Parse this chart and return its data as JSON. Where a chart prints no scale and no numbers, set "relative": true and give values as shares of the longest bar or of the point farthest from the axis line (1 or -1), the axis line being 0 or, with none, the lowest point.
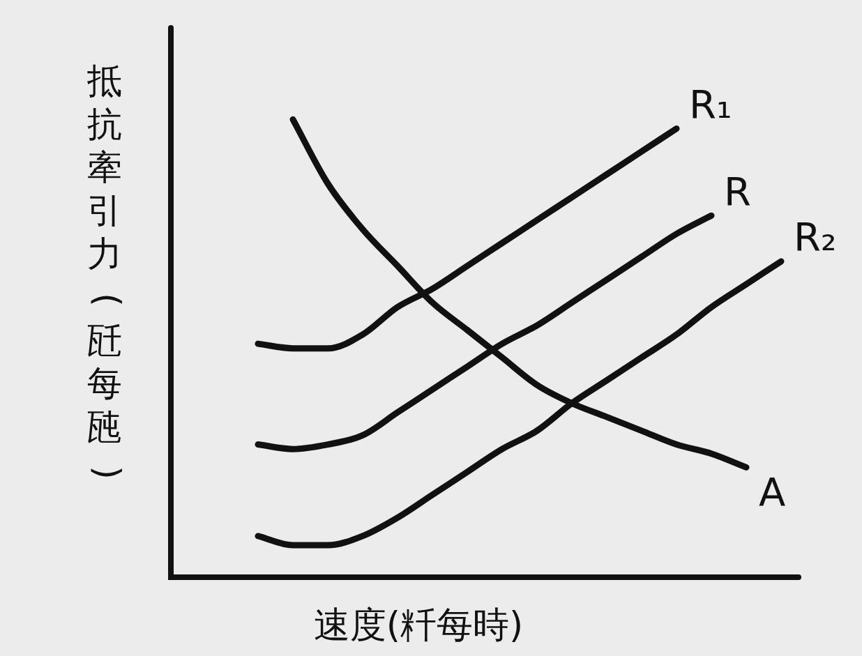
{
  "chart_data": {
    "type": "line",
    "relative": true,
    "xlabel": "速度(粁每時)",
    "ylabel": "抵抗牽引力(瓩每瓲)",
    "legend": false,
    "marker": "none",
    "line_style": "solid",
    "categories": [
      null,
      null,
      null,
      null,
      null,
      null,
      null,
      null,
      null,
      null,
      null,
      null,
      null,
      null,
      null,
      null
    ],
    "series": [
      {
        "name": "A",
        "color": "#111111",
        "values": [
          null,
          1.0,
          0.86,
          0.76,
          0.68,
          0.6,
          0.54,
          0.48,
          0.42,
          0.38,
          0.35,
          0.32,
          0.29,
          0.27,
          0.24,
          null
        ]
      },
      {
        "name": "R₁",
        "color": "#111111",
        "values": [
          0.51,
          0.5,
          0.5,
          0.53,
          0.59,
          0.63,
          0.68,
          0.73,
          0.78,
          0.83,
          0.88,
          0.93,
          0.98,
          null,
          null,
          null
        ]
      },
      {
        "name": "R",
        "color": "#111111",
        "values": [
          0.29,
          0.28,
          0.29,
          0.31,
          0.36,
          0.41,
          0.46,
          0.51,
          0.55,
          0.6,
          0.65,
          0.7,
          0.75,
          0.79,
          null,
          null
        ]
      },
      {
        "name": "R₂",
        "color": "#111111",
        "values": [
          0.09,
          0.07,
          0.07,
          0.09,
          0.13,
          0.18,
          0.23,
          0.28,
          0.32,
          0.38,
          0.43,
          0.48,
          0.53,
          0.59,
          0.64,
          0.69
        ]
      }
    ]
  }
}
